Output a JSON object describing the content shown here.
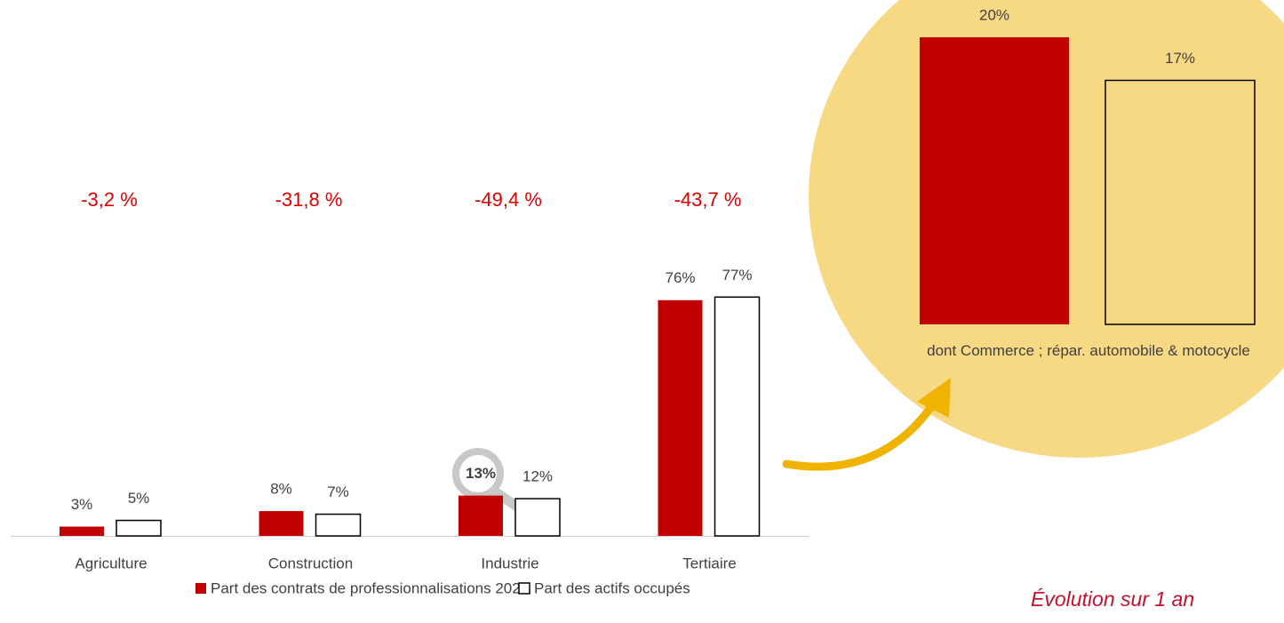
{
  "chart_data": [
    {
      "type": "bar",
      "categories": [
        "Agriculture",
        "Construction",
        "Industrie",
        "Tertiaire"
      ],
      "series": [
        {
          "name": "Part des contrats de professionnalisations 2020",
          "color": "#c00000",
          "values": [
            3,
            8,
            13,
            76
          ],
          "value_labels": [
            "3%",
            "8%",
            "13%",
            "76%"
          ]
        },
        {
          "name": "Part des actifs occupés",
          "color": "#ffffff",
          "values": [
            5,
            7,
            12,
            77
          ],
          "value_labels": [
            "5%",
            "7%",
            "12%",
            "77%"
          ]
        }
      ],
      "annotations": [
        "-3,2 %",
        "-31,8 %",
        "-49,4 %",
        "-43,7 %"
      ],
      "annotation_title": "Évolution sur 1 an"
    },
    {
      "type": "bar",
      "categories": [
        "dont Commerce ; répar. automobile & motocycle"
      ],
      "series": [
        {
          "color": "#c00000",
          "values": [
            20
          ],
          "value_labels": [
            "20%"
          ]
        },
        {
          "color": "none",
          "values": [
            17
          ],
          "value_labels": [
            "17%"
          ]
        }
      ]
    }
  ]
}
